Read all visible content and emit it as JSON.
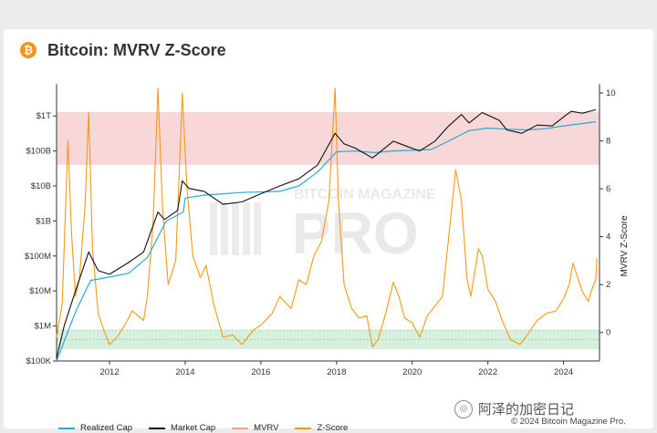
{
  "header": {
    "title": "Bitcoin: MVRV Z-Score",
    "icon": "bitcoin-icon"
  },
  "watermark": {
    "line1": "BITCOIN MAGAZINE",
    "line2": "PRO"
  },
  "legend": [
    {
      "label": "Realized Cap",
      "color": "#2aa8d8"
    },
    {
      "label": "Market Cap",
      "color": "#111111"
    },
    {
      "label": "MVRV",
      "color": "#f3a38a"
    },
    {
      "label": "Z-Score",
      "color": "#f39a12"
    }
  ],
  "footer": {
    "wechat": "阿泽的加密日记",
    "copyright": "© 2024 Bitcoin Magazine Pro."
  },
  "colors": {
    "red_zone": "#f4c9c9",
    "green_zone": "#cdebd5",
    "zscore": "#f39a12",
    "market_cap": "#111111",
    "realized_cap": "#2aa8d8"
  },
  "chart_data": {
    "type": "line",
    "title": "Bitcoin: MVRV Z-Score",
    "x_range": [
      2010.6,
      2024.95
    ],
    "x_ticks": [
      "2012",
      "2014",
      "2016",
      "2018",
      "2020",
      "2022",
      "2024"
    ],
    "y_left": {
      "scale": "log",
      "ticks": [
        "$100K",
        "$1M",
        "$10M",
        "$100M",
        "$1B",
        "$10B",
        "$100B",
        "$1T"
      ],
      "range": [
        "$100K",
        "$10T"
      ]
    },
    "y_right": {
      "label": "MVRV Z-Score",
      "ticks": [
        "0",
        "2",
        "4",
        "6",
        "8",
        "10"
      ],
      "range": [
        -1,
        10
      ]
    },
    "bands": [
      {
        "name": "red_zone",
        "axis": "right",
        "from": 7,
        "to": 9.2
      },
      {
        "name": "green_zone",
        "axis": "right",
        "from": -0.7,
        "to": 0.1
      }
    ],
    "series": [
      {
        "name": "Market Cap",
        "axis": "left",
        "unit": "USD",
        "points": [
          [
            2010.6,
            120000.0
          ],
          [
            2010.8,
            1000000.0
          ],
          [
            2011.1,
            10000000.0
          ],
          [
            2011.45,
            130000000.0
          ],
          [
            2011.7,
            38000000.0
          ],
          [
            2012.0,
            30000000.0
          ],
          [
            2012.5,
            65000000.0
          ],
          [
            2012.9,
            130000000.0
          ],
          [
            2013.28,
            1800000000.0
          ],
          [
            2013.45,
            1100000000.0
          ],
          [
            2013.8,
            2000000000.0
          ],
          [
            2013.92,
            14000000000.0
          ],
          [
            2014.1,
            8500000000.0
          ],
          [
            2014.5,
            7000000000.0
          ],
          [
            2015.0,
            3000000000.0
          ],
          [
            2015.5,
            3500000000.0
          ],
          [
            2016.0,
            6000000000.0
          ],
          [
            2016.5,
            10000000000.0
          ],
          [
            2017.0,
            16000000000.0
          ],
          [
            2017.5,
            40000000000.0
          ],
          [
            2017.96,
            320000000000.0
          ],
          [
            2018.2,
            160000000000.0
          ],
          [
            2018.5,
            120000000000.0
          ],
          [
            2018.95,
            63000000000.0
          ],
          [
            2019.5,
            190000000000.0
          ],
          [
            2019.9,
            130000000000.0
          ],
          [
            2020.2,
            100000000000.0
          ],
          [
            2020.6,
            190000000000.0
          ],
          [
            2020.95,
            500000000000.0
          ],
          [
            2021.3,
            1100000000000.0
          ],
          [
            2021.5,
            630000000000.0
          ],
          [
            2021.85,
            1250000000000.0
          ],
          [
            2022.3,
            750000000000.0
          ],
          [
            2022.5,
            400000000000.0
          ],
          [
            2022.9,
            320000000000.0
          ],
          [
            2023.3,
            550000000000.0
          ],
          [
            2023.7,
            520000000000.0
          ],
          [
            2023.95,
            850000000000.0
          ],
          [
            2024.2,
            1350000000000.0
          ],
          [
            2024.5,
            1200000000000.0
          ],
          [
            2024.85,
            1500000000000.0
          ]
        ]
      },
      {
        "name": "Realized Cap",
        "axis": "left",
        "unit": "USD",
        "points": [
          [
            2010.6,
            100000.0
          ],
          [
            2011.1,
            2500000.0
          ],
          [
            2011.5,
            20000000.0
          ],
          [
            2012.0,
            25000000.0
          ],
          [
            2012.5,
            32000000.0
          ],
          [
            2013.0,
            90000000.0
          ],
          [
            2013.5,
            1000000000.0
          ],
          [
            2013.95,
            1800000000.0
          ],
          [
            2014.0,
            4500000000.0
          ],
          [
            2014.5,
            5500000000.0
          ],
          [
            2015.5,
            6500000000.0
          ],
          [
            2016.5,
            7000000000.0
          ],
          [
            2017.0,
            10000000000.0
          ],
          [
            2017.5,
            25000000000.0
          ],
          [
            2018.0,
            95000000000.0
          ],
          [
            2018.5,
            100000000000.0
          ],
          [
            2019.0,
            90000000000.0
          ],
          [
            2019.5,
            100000000000.0
          ],
          [
            2020.5,
            110000000000.0
          ],
          [
            2021.0,
            200000000000.0
          ],
          [
            2021.5,
            380000000000.0
          ],
          [
            2022.0,
            450000000000.0
          ],
          [
            2022.5,
            420000000000.0
          ],
          [
            2023.0,
            400000000000.0
          ],
          [
            2023.5,
            430000000000.0
          ],
          [
            2024.0,
            520000000000.0
          ],
          [
            2024.85,
            680000000000.0
          ]
        ]
      },
      {
        "name": "Z-Score",
        "axis": "right",
        "points": [
          [
            2010.6,
            -0.2
          ],
          [
            2010.75,
            1.2
          ],
          [
            2010.9,
            8.0
          ],
          [
            2011.0,
            4.0
          ],
          [
            2011.1,
            1.5
          ],
          [
            2011.2,
            2.2
          ],
          [
            2011.35,
            5.2
          ],
          [
            2011.45,
            9.2
          ],
          [
            2011.55,
            3.5
          ],
          [
            2011.7,
            0.8
          ],
          [
            2011.85,
            0.1
          ],
          [
            2012.0,
            -0.5
          ],
          [
            2012.2,
            -0.2
          ],
          [
            2012.4,
            0.3
          ],
          [
            2012.6,
            0.9
          ],
          [
            2012.9,
            0.5
          ],
          [
            2013.0,
            1.5
          ],
          [
            2013.15,
            4.5
          ],
          [
            2013.28,
            10.2
          ],
          [
            2013.4,
            5.2
          ],
          [
            2013.55,
            2.0
          ],
          [
            2013.75,
            3.0
          ],
          [
            2013.85,
            7.0
          ],
          [
            2013.92,
            10.0
          ],
          [
            2014.05,
            6.0
          ],
          [
            2014.2,
            3.2
          ],
          [
            2014.4,
            2.3
          ],
          [
            2014.55,
            2.8
          ],
          [
            2014.75,
            1.2
          ],
          [
            2015.0,
            -0.2
          ],
          [
            2015.25,
            -0.1
          ],
          [
            2015.5,
            -0.5
          ],
          [
            2015.8,
            0.1
          ],
          [
            2016.0,
            0.3
          ],
          [
            2016.3,
            0.8
          ],
          [
            2016.5,
            1.5
          ],
          [
            2016.8,
            1.0
          ],
          [
            2017.0,
            2.2
          ],
          [
            2017.2,
            2.0
          ],
          [
            2017.4,
            3.2
          ],
          [
            2017.6,
            3.8
          ],
          [
            2017.8,
            5.5
          ],
          [
            2017.96,
            10.2
          ],
          [
            2018.05,
            5.5
          ],
          [
            2018.2,
            2.0
          ],
          [
            2018.4,
            1.0
          ],
          [
            2018.6,
            0.6
          ],
          [
            2018.8,
            0.7
          ],
          [
            2018.95,
            -0.6
          ],
          [
            2019.1,
            -0.3
          ],
          [
            2019.3,
            0.8
          ],
          [
            2019.5,
            2.1
          ],
          [
            2019.65,
            1.5
          ],
          [
            2019.8,
            0.6
          ],
          [
            2020.0,
            0.4
          ],
          [
            2020.2,
            -0.2
          ],
          [
            2020.4,
            0.7
          ],
          [
            2020.6,
            1.1
          ],
          [
            2020.8,
            1.5
          ],
          [
            2021.0,
            4.5
          ],
          [
            2021.15,
            6.8
          ],
          [
            2021.3,
            5.5
          ],
          [
            2021.45,
            2.2
          ],
          [
            2021.55,
            1.5
          ],
          [
            2021.75,
            3.5
          ],
          [
            2021.85,
            3.2
          ],
          [
            2022.0,
            1.8
          ],
          [
            2022.2,
            1.3
          ],
          [
            2022.4,
            0.4
          ],
          [
            2022.6,
            -0.3
          ],
          [
            2022.85,
            -0.5
          ],
          [
            2023.0,
            -0.2
          ],
          [
            2023.3,
            0.5
          ],
          [
            2023.55,
            0.8
          ],
          [
            2023.8,
            0.9
          ],
          [
            2024.0,
            1.4
          ],
          [
            2024.15,
            2.0
          ],
          [
            2024.25,
            2.9
          ],
          [
            2024.35,
            2.4
          ],
          [
            2024.5,
            1.7
          ],
          [
            2024.65,
            1.3
          ],
          [
            2024.75,
            1.8
          ],
          [
            2024.85,
            2.2
          ],
          [
            2024.88,
            3.1
          ]
        ]
      }
    ]
  }
}
